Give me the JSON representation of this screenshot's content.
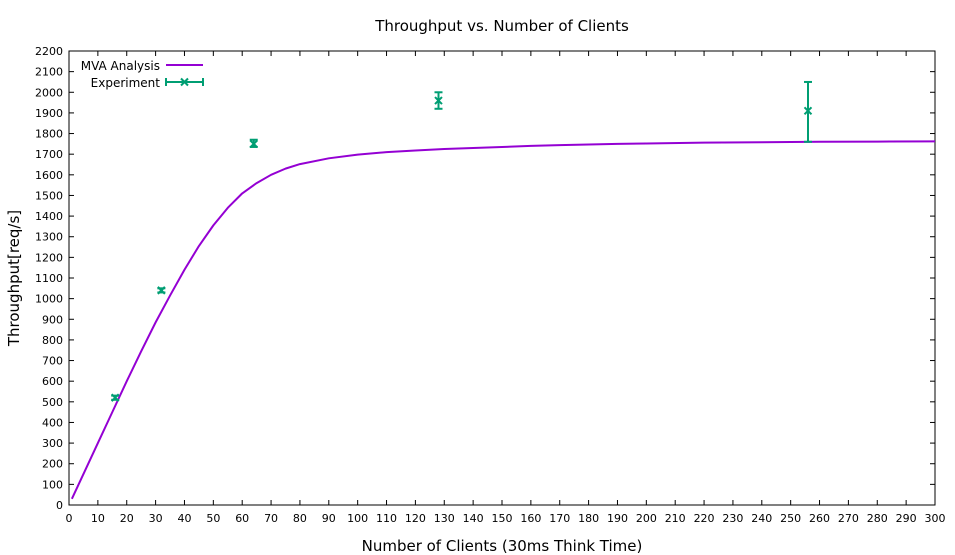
{
  "chart_data": {
    "type": "line",
    "title": "Throughput vs. Number of Clients",
    "xlabel": "Number of Clients (30ms Think Time)",
    "ylabel": "Throughput[req/s]",
    "xlim": [
      0,
      300
    ],
    "ylim": [
      0,
      2200
    ],
    "xticks": [
      0,
      10,
      20,
      30,
      40,
      50,
      60,
      70,
      80,
      90,
      100,
      110,
      120,
      130,
      140,
      150,
      160,
      170,
      180,
      190,
      200,
      210,
      220,
      230,
      240,
      250,
      260,
      270,
      280,
      290,
      300
    ],
    "yticks": [
      0,
      100,
      200,
      300,
      400,
      500,
      600,
      700,
      800,
      900,
      1000,
      1100,
      1200,
      1300,
      1400,
      1500,
      1600,
      1700,
      1800,
      1900,
      2000,
      2100,
      2200
    ],
    "grid": false,
    "legend_position": "top-left",
    "series": [
      {
        "name": "MVA Analysis",
        "kind": "line",
        "color": "#9400d3",
        "x": [
          1,
          5,
          10,
          15,
          20,
          25,
          30,
          35,
          40,
          45,
          50,
          55,
          60,
          65,
          70,
          75,
          80,
          90,
          100,
          110,
          120,
          130,
          140,
          150,
          160,
          170,
          180,
          190,
          200,
          220,
          240,
          260,
          280,
          300
        ],
        "y": [
          30,
          150,
          300,
          450,
          600,
          745,
          885,
          1015,
          1140,
          1255,
          1355,
          1440,
          1510,
          1560,
          1600,
          1630,
          1652,
          1680,
          1698,
          1710,
          1718,
          1725,
          1730,
          1735,
          1740,
          1744,
          1747,
          1750,
          1752,
          1756,
          1758,
          1760,
          1761,
          1762
        ]
      },
      {
        "name": "Experiment",
        "kind": "errorbar",
        "color": "#009e73",
        "x": [
          16,
          32,
          64,
          128,
          256
        ],
        "y": [
          520,
          1040,
          1750,
          1960,
          1910
        ],
        "ymin": [
          510,
          1030,
          1735,
          1920,
          1760
        ],
        "ymax": [
          530,
          1050,
          1770,
          2000,
          2050
        ]
      }
    ]
  }
}
